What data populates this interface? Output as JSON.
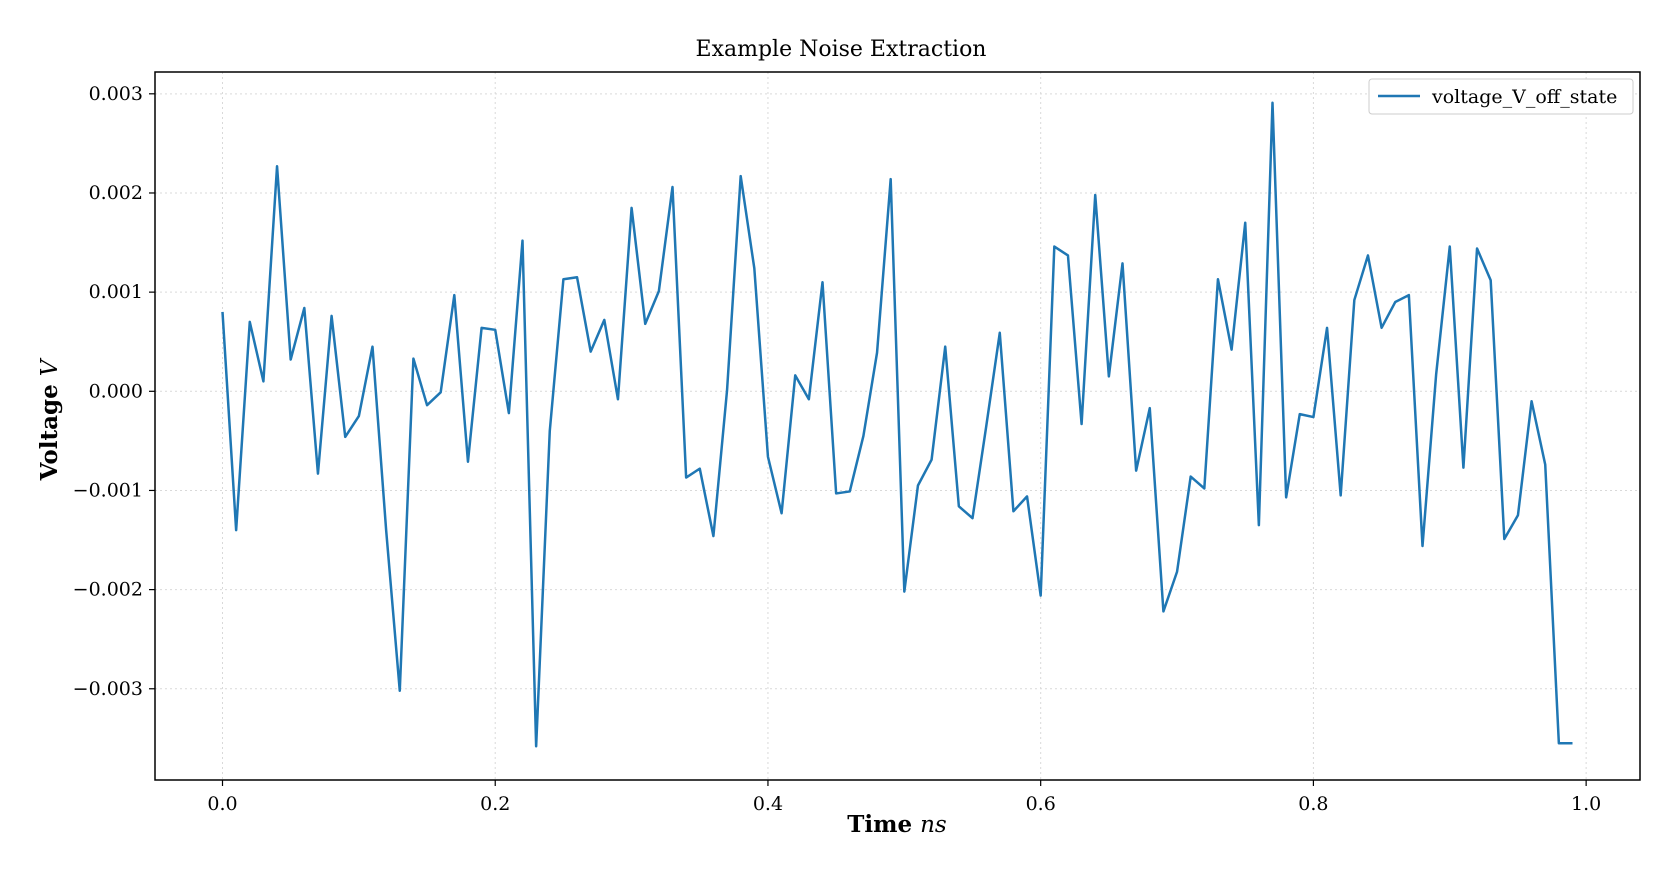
{
  "chart_data": {
    "type": "line",
    "title": "Example Noise Extraction",
    "xlabel": "Time",
    "xlabel_unit": "ns",
    "ylabel": "Voltage",
    "ylabel_unit": "V",
    "xlim": [
      -0.0495,
      1.0395
    ],
    "ylim": [
      -0.00392,
      0.00322
    ],
    "xticks": [
      0.0,
      0.2,
      0.4,
      0.6,
      0.8,
      1.0
    ],
    "xtick_labels": [
      "0.0",
      "0.2",
      "0.4",
      "0.6",
      "0.8",
      "1.0"
    ],
    "yticks": [
      0.003,
      0.002,
      0.001,
      0.0,
      -0.001,
      -0.002,
      -0.003
    ],
    "ytick_labels": [
      "0.003",
      "0.002",
      "0.001",
      "0.000",
      "−0.001",
      "−0.002",
      "−0.003"
    ],
    "grid": true,
    "legend_position": "top-right",
    "color": "#1f77b4",
    "series": [
      {
        "name": "voltage_V_off_state",
        "x": [
          0.0,
          0.01,
          0.02,
          0.03,
          0.04,
          0.05,
          0.06,
          0.07,
          0.08,
          0.09,
          0.1,
          0.11,
          0.12,
          0.13,
          0.14,
          0.15,
          0.16,
          0.17,
          0.18,
          0.19,
          0.2,
          0.21,
          0.22,
          0.23,
          0.24,
          0.25,
          0.26,
          0.27,
          0.28,
          0.29,
          0.3,
          0.31,
          0.32,
          0.33,
          0.34,
          0.35,
          0.36,
          0.37,
          0.38,
          0.39,
          0.4,
          0.41,
          0.42,
          0.43,
          0.44,
          0.45,
          0.46,
          0.47,
          0.48,
          0.49,
          0.5,
          0.51,
          0.52,
          0.53,
          0.54,
          0.55,
          0.56,
          0.57,
          0.58,
          0.59,
          0.6,
          0.61,
          0.62,
          0.63,
          0.64,
          0.65,
          0.66,
          0.67,
          0.68,
          0.69,
          0.7,
          0.71,
          0.72,
          0.73,
          0.74,
          0.75,
          0.76,
          0.77,
          0.78,
          0.79,
          0.8,
          0.81,
          0.82,
          0.83,
          0.84,
          0.85,
          0.86,
          0.87,
          0.88,
          0.89,
          0.9,
          0.91,
          0.92,
          0.93,
          0.94,
          0.95,
          0.96,
          0.97,
          0.98,
          0.99
        ],
        "values": [
          0.0008,
          -0.0014,
          0.0007,
          0.0001,
          0.00227,
          0.00032,
          0.00084,
          -0.00083,
          0.00076,
          -0.00046,
          -0.00025,
          0.00045,
          -0.0014,
          -0.00302,
          0.00033,
          -0.00014,
          -1e-05,
          0.00097,
          -0.00071,
          0.00064,
          0.00062,
          -0.00022,
          0.00152,
          -0.00358,
          -0.0004,
          0.00113,
          0.00115,
          0.0004,
          0.00072,
          -8e-05,
          0.00185,
          0.00068,
          0.00101,
          0.00206,
          -0.00087,
          -0.00078,
          -0.00146,
          1e-05,
          0.00217,
          0.00124,
          -0.00066,
          -0.00123,
          0.00016,
          -8e-05,
          0.0011,
          -0.00103,
          -0.00101,
          -0.00045,
          0.00039,
          0.00214,
          -0.00202,
          -0.00095,
          -0.00069,
          0.00045,
          -0.00116,
          -0.00128,
          -0.00036,
          0.00059,
          -0.00121,
          -0.00106,
          -0.00206,
          0.00146,
          0.00137,
          -0.00033,
          0.00198,
          0.00015,
          0.00129,
          -0.0008,
          -0.00017,
          -0.00222,
          -0.00182,
          -0.00086,
          -0.00098,
          0.00113,
          0.00042,
          0.0017,
          -0.00135,
          0.00291,
          -0.00107,
          -0.00023,
          -0.00026,
          0.00064,
          -0.00105,
          0.00092,
          0.00137,
          0.00064,
          0.0009,
          0.00097,
          -0.00156,
          0.00017,
          0.00146,
          -0.00077,
          0.00144,
          0.00112,
          -0.00149,
          -0.00125,
          -0.0001,
          -0.00074,
          -0.00355,
          -0.00355
        ]
      }
    ]
  }
}
